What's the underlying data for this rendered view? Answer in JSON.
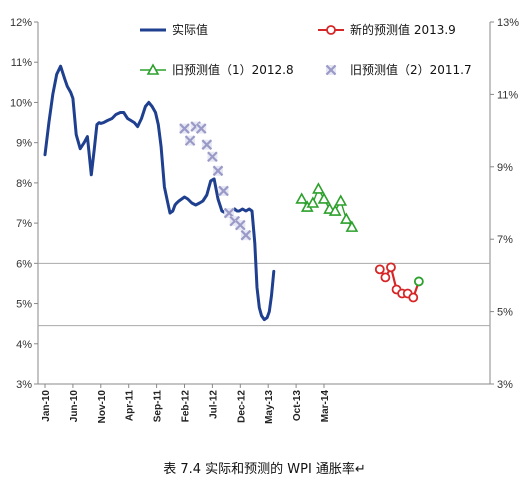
{
  "caption": "表 7.4 实际和预测的 WPI 通胀率↵",
  "chart_data": {
    "type": "line",
    "title": "",
    "y_left": {
      "min": 3,
      "max": 12,
      "ticks": [
        "3%",
        "4%",
        "5%",
        "6%",
        "7%",
        "8%",
        "9%",
        "10%",
        "11%",
        "12%"
      ]
    },
    "y_right": {
      "min": 3,
      "max": 13,
      "ticks": [
        "3%",
        "5%",
        "7%",
        "9%",
        "11%",
        "13%"
      ]
    },
    "x_ticks": [
      "Jan-10",
      "Jun-10",
      "Nov-10",
      "Apr-11",
      "Sep-11",
      "Feb-12",
      "Jul-12",
      "Dec-12",
      "May-13",
      "Oct-13",
      "Mar-14"
    ],
    "reference_lines_left_axis": [
      6.0,
      4.45
    ],
    "legend": [
      {
        "label": "实际值",
        "color": "#1f3f8f",
        "marker": "line"
      },
      {
        "label": "新的预测值 2013.9",
        "color": "#d62728",
        "marker": "circle"
      },
      {
        "label": "旧预测值（1）2012.8",
        "color": "#2ca02c",
        "marker": "triangle"
      },
      {
        "label": "旧预测值（2）2011.7",
        "color": "#9a9ac8",
        "marker": "x-box"
      }
    ],
    "series": [
      {
        "name": "实际值",
        "color": "#1f3f8f",
        "axis": "left",
        "x": [
          0,
          0.7,
          1.4,
          2.1,
          2.8,
          3.5,
          4.0,
          4.6,
          5.0,
          5.6,
          6.3,
          7.0,
          7.6,
          8.3,
          8.8,
          9.3,
          9.7,
          10.0,
          10.5,
          11.2,
          12.0,
          12.7,
          13.5,
          14.1,
          14.8,
          15.4,
          16.0,
          16.6,
          17.3,
          18.0,
          18.6,
          19.2,
          19.8,
          20.3,
          20.8,
          21.4,
          22.0,
          22.4,
          22.9,
          23.3,
          23.6,
          24.0,
          24.5,
          25.0,
          25.6,
          26.3,
          27.0,
          27.7,
          28.3,
          29.0,
          29.7,
          30.3,
          31.0,
          31.7,
          32.4,
          33.0,
          33.6,
          34.0,
          34.4,
          34.8,
          35.4,
          36.0,
          36.6,
          37.1,
          37.6,
          38.0,
          38.4,
          38.8,
          39.3,
          39.8,
          40.2,
          40.6,
          41.0
        ],
        "y": [
          8.7,
          9.5,
          10.2,
          10.7,
          10.9,
          10.6,
          10.4,
          10.25,
          10.1,
          9.2,
          8.85,
          9.0,
          9.15,
          8.2,
          8.8,
          9.45,
          9.5,
          9.48,
          9.5,
          9.55,
          9.6,
          9.7,
          9.75,
          9.75,
          9.6,
          9.55,
          9.5,
          9.4,
          9.6,
          9.9,
          10.0,
          9.9,
          9.75,
          9.45,
          8.9,
          7.9,
          7.5,
          7.25,
          7.3,
          7.45,
          7.5,
          7.55,
          7.6,
          7.65,
          7.6,
          7.5,
          7.45,
          7.5,
          7.55,
          7.7,
          8.05,
          8.1,
          7.6,
          7.3,
          7.25,
          7.3,
          7.3,
          7.35,
          7.3,
          7.3,
          7.35,
          7.3,
          7.35,
          7.3,
          6.5,
          5.4,
          4.9,
          4.7,
          4.6,
          4.65,
          4.8,
          5.2,
          5.8
        ]
      },
      {
        "name": "旧预测值（2）2011.7",
        "color": "#9a9ac8",
        "axis": "left",
        "x": [
          25,
          26,
          27,
          28,
          29,
          30,
          31,
          32,
          33,
          34,
          35,
          36
        ],
        "y": [
          9.35,
          9.05,
          9.4,
          9.35,
          8.95,
          8.65,
          8.3,
          7.8,
          7.25,
          7.05,
          6.95,
          6.7
        ]
      },
      {
        "name": "旧预测值（1）2012.8",
        "color": "#2ca02c",
        "axis": "left",
        "x": [
          46,
          47,
          48,
          49,
          50,
          51,
          52,
          53,
          54,
          55
        ],
        "y": [
          7.6,
          7.4,
          7.5,
          7.85,
          7.6,
          7.35,
          7.3,
          7.55,
          7.1,
          6.9
        ]
      },
      {
        "name": "新的预测值 2013.9",
        "color": "#d62728",
        "axis": "left",
        "x": [
          60,
          61,
          62,
          63,
          64,
          65,
          66,
          67
        ],
        "y": [
          5.85,
          5.65,
          5.9,
          5.35,
          5.25,
          5.25,
          5.15,
          5.55
        ]
      }
    ]
  }
}
